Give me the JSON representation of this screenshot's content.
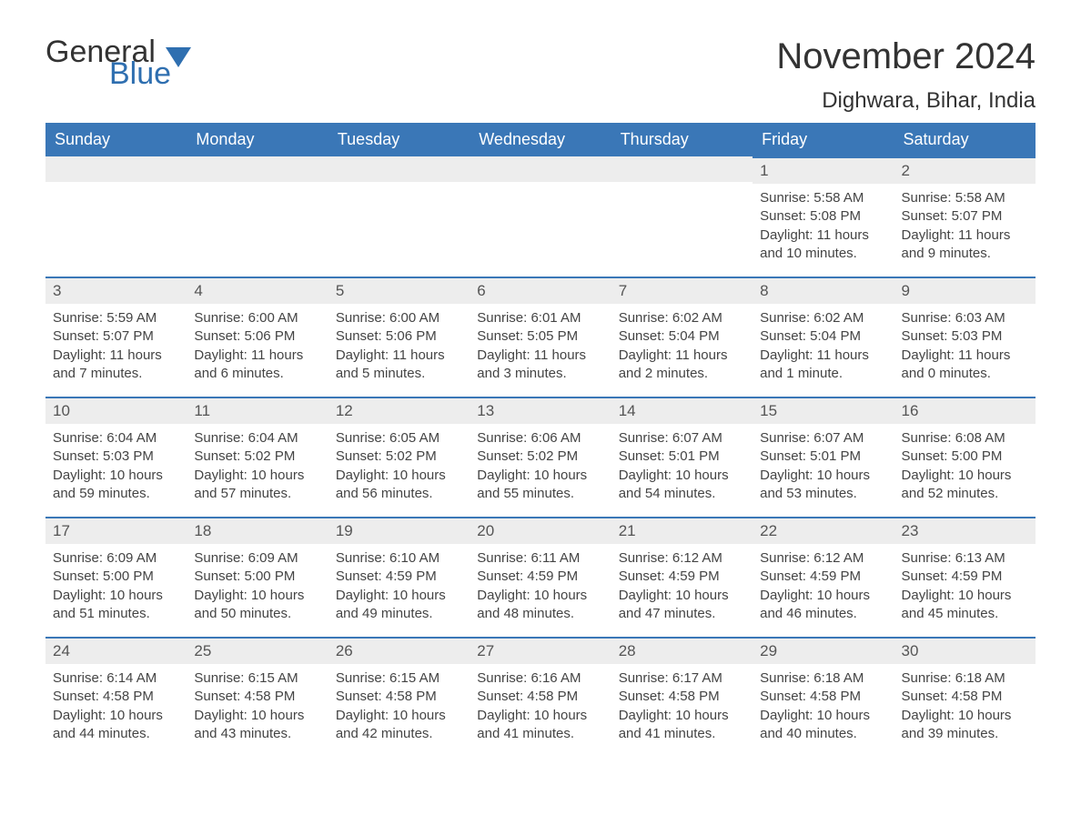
{
  "brand": {
    "line1": "General",
    "line2": "Blue"
  },
  "title": "November 2024",
  "location": "Dighwara, Bihar, India",
  "colors": {
    "header_bg": "#3a77b7",
    "header_text": "#ffffff",
    "daynum_bg": "#ededed",
    "border_top": "#3a77b7",
    "body_text": "#444444",
    "title_text": "#333333",
    "brand_blue": "#2f6fb0",
    "page_bg": "#ffffff"
  },
  "typography": {
    "title_fontsize": 40,
    "location_fontsize": 24,
    "header_fontsize": 18,
    "daynum_fontsize": 17,
    "body_fontsize": 15
  },
  "weekdays": [
    "Sunday",
    "Monday",
    "Tuesday",
    "Wednesday",
    "Thursday",
    "Friday",
    "Saturday"
  ],
  "weeks": [
    [
      null,
      null,
      null,
      null,
      null,
      {
        "n": "1",
        "sunrise": "Sunrise: 5:58 AM",
        "sunset": "Sunset: 5:08 PM",
        "daylight": "Daylight: 11 hours and 10 minutes."
      },
      {
        "n": "2",
        "sunrise": "Sunrise: 5:58 AM",
        "sunset": "Sunset: 5:07 PM",
        "daylight": "Daylight: 11 hours and 9 minutes."
      }
    ],
    [
      {
        "n": "3",
        "sunrise": "Sunrise: 5:59 AM",
        "sunset": "Sunset: 5:07 PM",
        "daylight": "Daylight: 11 hours and 7 minutes."
      },
      {
        "n": "4",
        "sunrise": "Sunrise: 6:00 AM",
        "sunset": "Sunset: 5:06 PM",
        "daylight": "Daylight: 11 hours and 6 minutes."
      },
      {
        "n": "5",
        "sunrise": "Sunrise: 6:00 AM",
        "sunset": "Sunset: 5:06 PM",
        "daylight": "Daylight: 11 hours and 5 minutes."
      },
      {
        "n": "6",
        "sunrise": "Sunrise: 6:01 AM",
        "sunset": "Sunset: 5:05 PM",
        "daylight": "Daylight: 11 hours and 3 minutes."
      },
      {
        "n": "7",
        "sunrise": "Sunrise: 6:02 AM",
        "sunset": "Sunset: 5:04 PM",
        "daylight": "Daylight: 11 hours and 2 minutes."
      },
      {
        "n": "8",
        "sunrise": "Sunrise: 6:02 AM",
        "sunset": "Sunset: 5:04 PM",
        "daylight": "Daylight: 11 hours and 1 minute."
      },
      {
        "n": "9",
        "sunrise": "Sunrise: 6:03 AM",
        "sunset": "Sunset: 5:03 PM",
        "daylight": "Daylight: 11 hours and 0 minutes."
      }
    ],
    [
      {
        "n": "10",
        "sunrise": "Sunrise: 6:04 AM",
        "sunset": "Sunset: 5:03 PM",
        "daylight": "Daylight: 10 hours and 59 minutes."
      },
      {
        "n": "11",
        "sunrise": "Sunrise: 6:04 AM",
        "sunset": "Sunset: 5:02 PM",
        "daylight": "Daylight: 10 hours and 57 minutes."
      },
      {
        "n": "12",
        "sunrise": "Sunrise: 6:05 AM",
        "sunset": "Sunset: 5:02 PM",
        "daylight": "Daylight: 10 hours and 56 minutes."
      },
      {
        "n": "13",
        "sunrise": "Sunrise: 6:06 AM",
        "sunset": "Sunset: 5:02 PM",
        "daylight": "Daylight: 10 hours and 55 minutes."
      },
      {
        "n": "14",
        "sunrise": "Sunrise: 6:07 AM",
        "sunset": "Sunset: 5:01 PM",
        "daylight": "Daylight: 10 hours and 54 minutes."
      },
      {
        "n": "15",
        "sunrise": "Sunrise: 6:07 AM",
        "sunset": "Sunset: 5:01 PM",
        "daylight": "Daylight: 10 hours and 53 minutes."
      },
      {
        "n": "16",
        "sunrise": "Sunrise: 6:08 AM",
        "sunset": "Sunset: 5:00 PM",
        "daylight": "Daylight: 10 hours and 52 minutes."
      }
    ],
    [
      {
        "n": "17",
        "sunrise": "Sunrise: 6:09 AM",
        "sunset": "Sunset: 5:00 PM",
        "daylight": "Daylight: 10 hours and 51 minutes."
      },
      {
        "n": "18",
        "sunrise": "Sunrise: 6:09 AM",
        "sunset": "Sunset: 5:00 PM",
        "daylight": "Daylight: 10 hours and 50 minutes."
      },
      {
        "n": "19",
        "sunrise": "Sunrise: 6:10 AM",
        "sunset": "Sunset: 4:59 PM",
        "daylight": "Daylight: 10 hours and 49 minutes."
      },
      {
        "n": "20",
        "sunrise": "Sunrise: 6:11 AM",
        "sunset": "Sunset: 4:59 PM",
        "daylight": "Daylight: 10 hours and 48 minutes."
      },
      {
        "n": "21",
        "sunrise": "Sunrise: 6:12 AM",
        "sunset": "Sunset: 4:59 PM",
        "daylight": "Daylight: 10 hours and 47 minutes."
      },
      {
        "n": "22",
        "sunrise": "Sunrise: 6:12 AM",
        "sunset": "Sunset: 4:59 PM",
        "daylight": "Daylight: 10 hours and 46 minutes."
      },
      {
        "n": "23",
        "sunrise": "Sunrise: 6:13 AM",
        "sunset": "Sunset: 4:59 PM",
        "daylight": "Daylight: 10 hours and 45 minutes."
      }
    ],
    [
      {
        "n": "24",
        "sunrise": "Sunrise: 6:14 AM",
        "sunset": "Sunset: 4:58 PM",
        "daylight": "Daylight: 10 hours and 44 minutes."
      },
      {
        "n": "25",
        "sunrise": "Sunrise: 6:15 AM",
        "sunset": "Sunset: 4:58 PM",
        "daylight": "Daylight: 10 hours and 43 minutes."
      },
      {
        "n": "26",
        "sunrise": "Sunrise: 6:15 AM",
        "sunset": "Sunset: 4:58 PM",
        "daylight": "Daylight: 10 hours and 42 minutes."
      },
      {
        "n": "27",
        "sunrise": "Sunrise: 6:16 AM",
        "sunset": "Sunset: 4:58 PM",
        "daylight": "Daylight: 10 hours and 41 minutes."
      },
      {
        "n": "28",
        "sunrise": "Sunrise: 6:17 AM",
        "sunset": "Sunset: 4:58 PM",
        "daylight": "Daylight: 10 hours and 41 minutes."
      },
      {
        "n": "29",
        "sunrise": "Sunrise: 6:18 AM",
        "sunset": "Sunset: 4:58 PM",
        "daylight": "Daylight: 10 hours and 40 minutes."
      },
      {
        "n": "30",
        "sunrise": "Sunrise: 6:18 AM",
        "sunset": "Sunset: 4:58 PM",
        "daylight": "Daylight: 10 hours and 39 minutes."
      }
    ]
  ]
}
